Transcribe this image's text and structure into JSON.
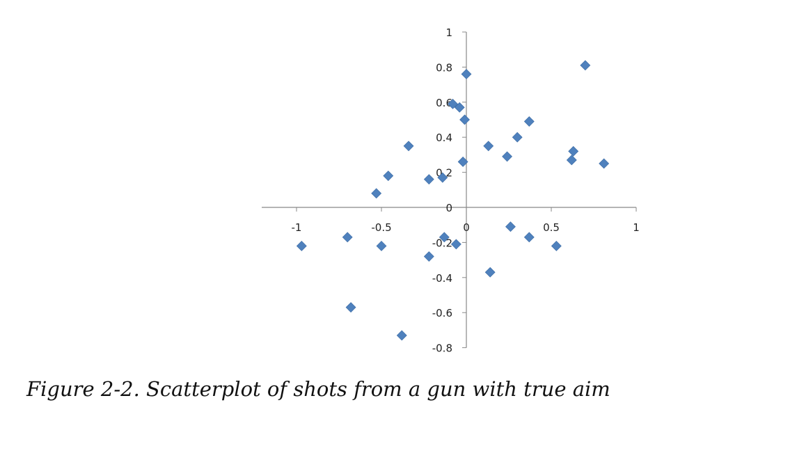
{
  "caption": "Figure 2-2. Scatterplot of shots from a gun with true aim",
  "chart_data": {
    "type": "scatter",
    "title": "",
    "xlabel": "",
    "ylabel": "",
    "xlim": [
      -1,
      1
    ],
    "ylim": [
      -0.8,
      1
    ],
    "x_ticks": [
      -1,
      -0.5,
      0,
      0.5,
      1
    ],
    "x_tick_labels": [
      "-1",
      "-0.5",
      "0",
      "0.5",
      "1"
    ],
    "y_ticks": [
      -0.8,
      -0.6,
      -0.4,
      -0.2,
      0,
      0.2,
      0.4,
      0.6,
      0.8,
      1
    ],
    "y_tick_labels": [
      "-0.8",
      "-0.6",
      "-0.4",
      "-0.2",
      "0",
      "0.2",
      "0.4",
      "0.6",
      "0.8",
      "1"
    ],
    "marker_color": "#4f81bd",
    "axis_color": "#888888",
    "series": [
      {
        "name": "Shots",
        "points": [
          [
            -0.97,
            -0.22
          ],
          [
            -0.7,
            -0.17
          ],
          [
            -0.68,
            -0.57
          ],
          [
            -0.53,
            0.08
          ],
          [
            -0.5,
            -0.22
          ],
          [
            -0.46,
            0.18
          ],
          [
            -0.38,
            -0.73
          ],
          [
            -0.34,
            0.35
          ],
          [
            -0.22,
            0.16
          ],
          [
            -0.22,
            -0.28
          ],
          [
            -0.14,
            0.17
          ],
          [
            -0.13,
            -0.17
          ],
          [
            -0.08,
            0.59
          ],
          [
            -0.06,
            -0.21
          ],
          [
            -0.04,
            0.57
          ],
          [
            -0.02,
            0.26
          ],
          [
            -0.01,
            0.5
          ],
          [
            0.0,
            0.76
          ],
          [
            0.13,
            0.35
          ],
          [
            0.14,
            -0.37
          ],
          [
            0.24,
            0.29
          ],
          [
            0.26,
            -0.11
          ],
          [
            0.3,
            0.4
          ],
          [
            0.37,
            0.49
          ],
          [
            0.37,
            -0.17
          ],
          [
            0.53,
            -0.22
          ],
          [
            0.62,
            0.27
          ],
          [
            0.63,
            0.32
          ],
          [
            0.7,
            0.81
          ],
          [
            0.81,
            0.25
          ]
        ]
      }
    ]
  }
}
